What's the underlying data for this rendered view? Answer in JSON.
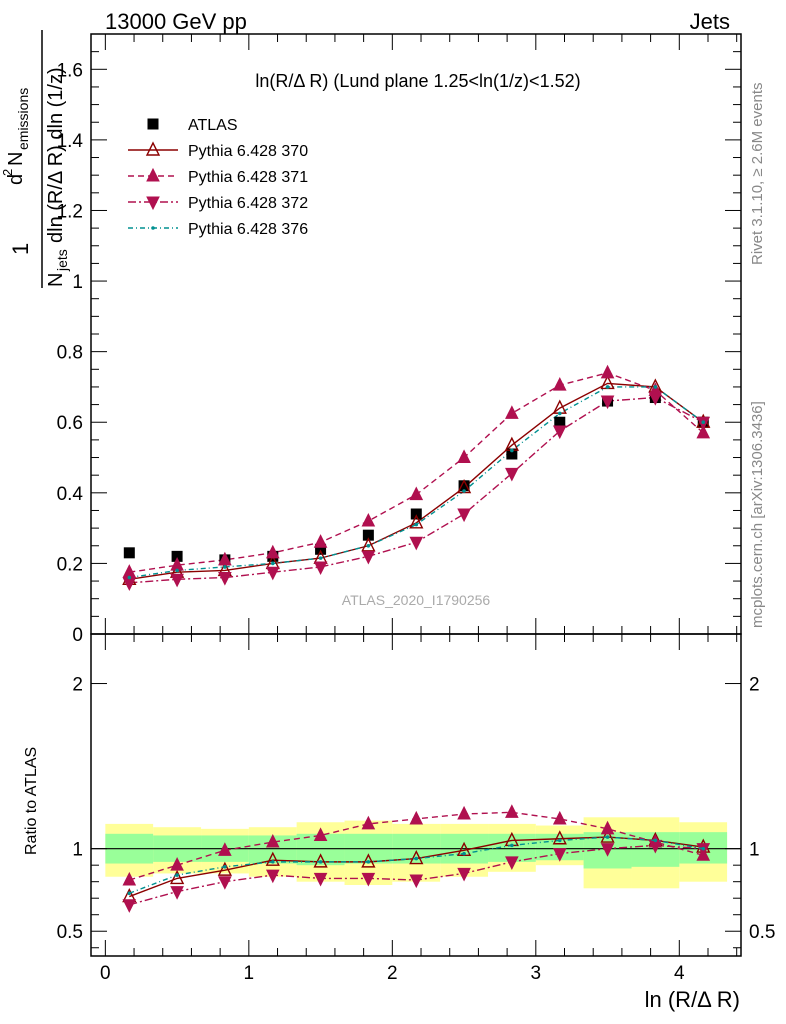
{
  "header": {
    "left": "13000 GeV pp",
    "right": "Jets"
  },
  "plot_title": "ln(R/Δ R) (Lund plane 1.25<ln(1/z)<1.52)",
  "ylabel": "1/N_jets dln (R/Δ R) dln (1/z) d² N_emissions",
  "ylabel_parts": {
    "frac_top": "1",
    "sup": "2",
    "d": "d",
    "n": "N",
    "n_sub": "emissions",
    "den_n": "N",
    "den_sub": "jets",
    "den_rest": "dln (R/Δ R) dln (1/z)"
  },
  "xlabel": "ln (R/Δ R)",
  "ratio_ylabel": "Ratio to ATLAS",
  "watermark": "ATLAS_2020_I1790256",
  "side_top": "Rivet 3.1.10, ≥ 2.6M events",
  "side_bottom": "mcplots.cern.ch [arXiv:1306.3436]",
  "colors": {
    "atlas": "#000000",
    "py370": "#8b0000",
    "py371": "#b0104f",
    "py372": "#b0104f",
    "py376": "#009090",
    "band_inner": "#99ff99",
    "band_outer": "#ffff99"
  },
  "chart_data": [
    {
      "type": "scatter",
      "panel": "main",
      "x": [
        0.167,
        0.5,
        0.833,
        1.167,
        1.5,
        1.833,
        2.167,
        2.5,
        2.833,
        3.167,
        3.5,
        3.833,
        4.167
      ],
      "xlim": [
        -0.1,
        4.43
      ],
      "ylim": [
        0,
        1.7
      ],
      "yticks": [
        0,
        0.2,
        0.4,
        0.6,
        0.8,
        1,
        1.2,
        1.4,
        1.6
      ],
      "xticks": [
        0,
        1,
        2,
        3,
        4
      ],
      "series": [
        {
          "name": "ATLAS",
          "marker": "square",
          "values": [
            0.23,
            0.22,
            0.21,
            0.22,
            0.24,
            0.28,
            0.34,
            0.42,
            0.51,
            0.6,
            0.66,
            0.67,
            0.6
          ]
        },
        {
          "name": "Pythia 6.428 370",
          "marker": "triangle-open",
          "line": "solid",
          "values": [
            0.155,
            0.175,
            0.18,
            0.2,
            0.215,
            0.25,
            0.315,
            0.415,
            0.535,
            0.64,
            0.71,
            0.7,
            0.6
          ]
        },
        {
          "name": "Pythia 6.428 371",
          "marker": "triangle-up",
          "line": "dashed",
          "values": [
            0.175,
            0.195,
            0.21,
            0.23,
            0.26,
            0.32,
            0.395,
            0.5,
            0.625,
            0.705,
            0.74,
            0.69,
            0.57
          ]
        },
        {
          "name": "Pythia 6.428 372",
          "marker": "triangle-down",
          "line": "dashdot",
          "values": [
            0.145,
            0.155,
            0.16,
            0.175,
            0.19,
            0.22,
            0.26,
            0.34,
            0.455,
            0.575,
            0.66,
            0.67,
            0.6
          ]
        },
        {
          "name": "Pythia 6.428 376",
          "marker": "dot",
          "line": "dashdotted",
          "values": [
            0.16,
            0.18,
            0.19,
            0.2,
            0.215,
            0.25,
            0.31,
            0.405,
            0.52,
            0.625,
            0.7,
            0.7,
            0.6
          ]
        }
      ]
    },
    {
      "type": "line",
      "panel": "ratio",
      "x": [
        0.167,
        0.5,
        0.833,
        1.167,
        1.5,
        1.833,
        2.167,
        2.5,
        2.833,
        3.167,
        3.5,
        3.833,
        4.167
      ],
      "xlim": [
        -0.1,
        4.43
      ],
      "ylim": [
        0.35,
        2.3
      ],
      "yticks": [
        0.5,
        1,
        2
      ],
      "band_edges": [
        0,
        0.333,
        0.667,
        1.0,
        1.333,
        1.667,
        2.0,
        2.333,
        2.667,
        3.0,
        3.333,
        3.667,
        4.0,
        4.333
      ],
      "band_inner": [
        [
          0.91,
          1.09
        ],
        [
          0.92,
          1.08
        ],
        [
          0.92,
          1.08
        ],
        [
          0.91,
          1.08
        ],
        [
          0.9,
          1.09
        ],
        [
          0.91,
          1.09
        ],
        [
          0.91,
          1.09
        ],
        [
          0.91,
          1.09
        ],
        [
          0.92,
          1.09
        ],
        [
          0.93,
          1.09
        ],
        [
          0.88,
          1.1
        ],
        [
          0.89,
          1.1
        ],
        [
          0.91,
          1.1
        ]
      ],
      "band_outer": [
        [
          0.83,
          1.15
        ],
        [
          0.85,
          1.13
        ],
        [
          0.85,
          1.12
        ],
        [
          0.83,
          1.13
        ],
        [
          0.8,
          1.16
        ],
        [
          0.78,
          1.17
        ],
        [
          0.8,
          1.15
        ],
        [
          0.83,
          1.15
        ],
        [
          0.86,
          1.15
        ],
        [
          0.9,
          1.14
        ],
        [
          0.76,
          1.19
        ],
        [
          0.76,
          1.19
        ],
        [
          0.8,
          1.16
        ]
      ],
      "series": [
        {
          "name": "Pythia 6.428 370",
          "values": [
            0.71,
            0.82,
            0.87,
            0.93,
            0.92,
            0.92,
            0.94,
            0.99,
            1.05,
            1.06,
            1.07,
            1.05,
            1.01
          ]
        },
        {
          "name": "Pythia 6.428 371",
          "values": [
            0.81,
            0.9,
            0.99,
            1.04,
            1.08,
            1.15,
            1.18,
            1.21,
            1.22,
            1.18,
            1.12,
            1.04,
            0.96
          ]
        },
        {
          "name": "Pythia 6.428 372",
          "values": [
            0.66,
            0.74,
            0.8,
            0.84,
            0.82,
            0.82,
            0.81,
            0.85,
            0.92,
            0.97,
            1.0,
            1.02,
            1.0
          ]
        },
        {
          "name": "Pythia 6.428 376",
          "values": [
            0.73,
            0.84,
            0.89,
            0.92,
            0.92,
            0.92,
            0.94,
            0.97,
            1.02,
            1.05,
            1.07,
            1.05,
            1.0
          ]
        }
      ]
    }
  ]
}
